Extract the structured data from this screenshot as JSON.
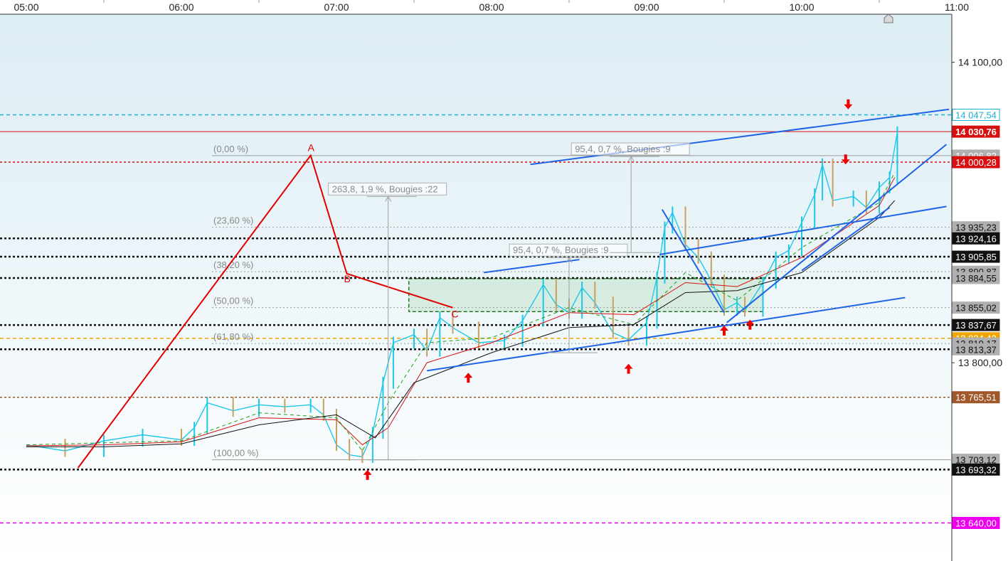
{
  "chart_data": {
    "type": "line",
    "x_axis": {
      "ticks": [
        "05:00",
        "06:00",
        "07:00",
        "08:00",
        "09:00",
        "10:00",
        "11:00"
      ]
    },
    "y_axis": {
      "ylim": [
        13602,
        14148
      ],
      "ticks": [
        "14 100,00",
        "13 800,00"
      ],
      "tick_values": [
        14100,
        13800
      ],
      "grid": false,
      "position": "right"
    },
    "price_tags": [
      {
        "label": "14 047,54",
        "value": 14047.54,
        "bg": "#ffffff",
        "fg": "#1ab0d8",
        "border": "#1ab0d8"
      },
      {
        "label": "14 030,76",
        "value": 14030.76,
        "bg": "#d61010",
        "fg": "#ffffff",
        "border": "#d61010",
        "bold": true
      },
      {
        "label": "14 006,82",
        "value": 14006.82,
        "bg": "#b0b0b0",
        "fg": "#ffffff",
        "border": "#b0b0b0"
      },
      {
        "label": "14 000,28",
        "value": 14000.28,
        "bg": "#d61010",
        "fg": "#ffffff",
        "border": "#d61010"
      },
      {
        "label": "13 935,23",
        "value": 13935.23,
        "bg": "#b0b0b0",
        "fg": "#111111",
        "border": "#b0b0b0"
      },
      {
        "label": "13 924,16",
        "value": 13924.16,
        "bg": "#111111",
        "fg": "#ffffff",
        "border": "#111111"
      },
      {
        "label": "13 905,85",
        "value": 13905.85,
        "bg": "#111111",
        "fg": "#ffffff",
        "border": "#111111"
      },
      {
        "label": "13 890,87",
        "value": 13890.87,
        "bg": "#b0b0b0",
        "fg": "#111111",
        "border": "#b0b0b0"
      },
      {
        "label": "13 884,55",
        "value": 13884.55,
        "bg": "#b0b0b0",
        "fg": "#111111",
        "border": "#b0b0b0"
      },
      {
        "label": "13 855,02",
        "value": 13855.02,
        "bg": "#b0b0b0",
        "fg": "#111111",
        "border": "#b0b0b0"
      },
      {
        "label": "13 837,67",
        "value": 13837.67,
        "bg": "#111111",
        "fg": "#ffffff",
        "border": "#111111"
      },
      {
        "label": "13 824,42",
        "value": 13824.42,
        "bg": "#f0a500",
        "fg": "#ffffff",
        "border": "#f0a500"
      },
      {
        "label": "13 819,17",
        "value": 13819.17,
        "bg": "#b0b0b0",
        "fg": "#111111",
        "border": "#b0b0b0"
      },
      {
        "label": "13 813,37",
        "value": 13813.37,
        "bg": "#b0b0b0",
        "fg": "#111111",
        "border": "#b0b0b0"
      },
      {
        "label": "13 765,51",
        "value": 13765.51,
        "bg": "#a0582a",
        "fg": "#ffffff",
        "border": "#a0582a"
      },
      {
        "label": "13 703,12",
        "value": 13703.12,
        "bg": "#b0b0b0",
        "fg": "#111111",
        "border": "#b0b0b0"
      },
      {
        "label": "13 693,32",
        "value": 13693.32,
        "bg": "#111111",
        "fg": "#ffffff",
        "border": "#111111"
      },
      {
        "label": "13 640,00",
        "value": 13640.0,
        "bg": "#ee00ee",
        "fg": "#ffffff",
        "border": "#ee00ee"
      }
    ],
    "horizontal_lines": [
      {
        "value": 14047.54,
        "color": "#1ab0d8",
        "style": "dashed"
      },
      {
        "value": 14030.76,
        "color": "#d61010",
        "style": "solid"
      },
      {
        "value": 14000.28,
        "color": "#d61010",
        "style": "dotted"
      },
      {
        "value": 13924.16,
        "color": "#111111",
        "style": "dotted"
      },
      {
        "value": 13905.85,
        "color": "#111111",
        "style": "dotted"
      },
      {
        "value": 13884.55,
        "color": "#111111",
        "style": "dotted"
      },
      {
        "value": 13837.67,
        "color": "#111111",
        "style": "dotted"
      },
      {
        "value": 13824.42,
        "color": "#f0a500",
        "style": "dashed"
      },
      {
        "value": 13813.37,
        "color": "#111111",
        "style": "dotted"
      },
      {
        "value": 13765.51,
        "color": "#a0582a",
        "style": "dotted"
      },
      {
        "value": 13693.32,
        "color": "#111111",
        "style": "dotted"
      },
      {
        "value": 13640.0,
        "color": "#ee00ee",
        "style": "dashed"
      }
    ],
    "fibonacci": {
      "levels": [
        {
          "label": "(0,00 %)",
          "value": 14006.82
        },
        {
          "label": "(23,60 %)",
          "value": 13935.23
        },
        {
          "label": "(38,20 %)",
          "value": 13890.87
        },
        {
          "label": "(50,00 %)",
          "value": 13855.02
        },
        {
          "label": "(61,80 %)",
          "value": 13819.17
        },
        {
          "label": "(100,00 %)",
          "value": 13703.12
        }
      ],
      "start_time": "07:00",
      "end_time": "11:00"
    },
    "abc_pattern": [
      {
        "label": "",
        "time": "05:20",
        "value": 13695
      },
      {
        "label": "A",
        "time": "06:50",
        "value": 14007
      },
      {
        "label": "B",
        "time": "07:04",
        "value": 13889
      },
      {
        "label": "C",
        "time": "07:45",
        "value": 13855
      }
    ],
    "measurements": [
      {
        "text": "263,8, 1,9 %, Bougies :22",
        "time": "07:20",
        "from": 13703,
        "to": 13966
      },
      {
        "text": "95,4, 0,7 %, Bougies :9",
        "time": "08:30",
        "from": 13810,
        "to": 13905
      },
      {
        "text": "95,4, 0,7 %, Bougies :9",
        "time": "08:54",
        "from": 13910,
        "to": 14006
      }
    ],
    "zone": {
      "time_from": "07:28",
      "time_to": "09:45",
      "from": 13851,
      "to": 13884,
      "color": "#2e9e2e"
    },
    "trend_lines": [
      {
        "points": [
          [
            "07:35",
            13792
          ],
          [
            "08:55",
            13823
          ]
        ],
        "color": "#1e64e6"
      },
      {
        "points": [
          [
            "08:55",
            13823
          ],
          [
            "10:40",
            13865
          ]
        ],
        "color": "#1e64e6"
      },
      {
        "points": [
          [
            "07:57",
            13890
          ],
          [
            "08:34",
            13903
          ]
        ],
        "color": "#1e64e6"
      },
      {
        "points": [
          [
            "08:15",
            13998
          ],
          [
            "10:57",
            14053
          ]
        ],
        "color": "#1e64e6"
      },
      {
        "points": [
          [
            "09:05",
            13908
          ],
          [
            "10:56",
            13956
          ]
        ],
        "color": "#1e64e6"
      },
      {
        "points": [
          [
            "09:31",
            13840
          ],
          [
            "10:56",
            14018
          ]
        ],
        "color": "#1e64e6"
      },
      {
        "points": [
          [
            "09:06",
            13953
          ],
          [
            "09:30",
            13850
          ]
        ],
        "color": "#1e64e6"
      },
      {
        "points": [
          [
            "10:00",
            13892
          ],
          [
            "10:34",
            13955
          ]
        ],
        "color": "#1e64e6"
      }
    ],
    "arrows": [
      {
        "dir": "up",
        "time": "07:12",
        "value": 13688
      },
      {
        "dir": "up",
        "time": "07:51",
        "value": 13785
      },
      {
        "dir": "up",
        "time": "08:53",
        "value": 13794
      },
      {
        "dir": "up",
        "time": "09:30",
        "value": 13832
      },
      {
        "dir": "up",
        "time": "09:40",
        "value": 13838
      },
      {
        "dir": "down",
        "time": "10:17",
        "value": 14003
      },
      {
        "dir": "down",
        "time": "10:18",
        "value": 14058
      }
    ],
    "price_path": [
      [
        "05:00",
        13718
      ],
      [
        "05:15",
        13712
      ],
      [
        "05:30",
        13722
      ],
      [
        "05:45",
        13728
      ],
      [
        "06:00",
        13723
      ],
      [
        "06:05",
        13735
      ],
      [
        "06:10",
        13760
      ],
      [
        "06:20",
        13752
      ],
      [
        "06:30",
        13758
      ],
      [
        "06:40",
        13756
      ],
      [
        "06:50",
        13758
      ],
      [
        "06:55",
        13748
      ],
      [
        "07:00",
        13718
      ],
      [
        "07:05",
        13708
      ],
      [
        "07:10",
        13706
      ],
      [
        "07:14",
        13730
      ],
      [
        "07:18",
        13780
      ],
      [
        "07:22",
        13820
      ],
      [
        "07:30",
        13828
      ],
      [
        "07:35",
        13812
      ],
      [
        "07:40",
        13845
      ],
      [
        "07:45",
        13835
      ],
      [
        "07:55",
        13820
      ],
      [
        "08:05",
        13822
      ],
      [
        "08:12",
        13842
      ],
      [
        "08:20",
        13878
      ],
      [
        "08:25",
        13858
      ],
      [
        "08:30",
        13850
      ],
      [
        "08:35",
        13875
      ],
      [
        "08:40",
        13860
      ],
      [
        "08:47",
        13830
      ],
      [
        "08:53",
        13823
      ],
      [
        "09:00",
        13840
      ],
      [
        "09:04",
        13885
      ],
      [
        "09:07",
        13935
      ],
      [
        "09:10",
        13950
      ],
      [
        "09:15",
        13918
      ],
      [
        "09:20",
        13905
      ],
      [
        "09:25",
        13882
      ],
      [
        "09:30",
        13853
      ],
      [
        "09:35",
        13860
      ],
      [
        "09:38",
        13852
      ],
      [
        "09:45",
        13880
      ],
      [
        "09:50",
        13905
      ],
      [
        "09:55",
        13912
      ],
      [
        "10:00",
        13940
      ],
      [
        "10:05",
        13968
      ],
      [
        "10:08",
        13998
      ],
      [
        "10:12",
        13962
      ],
      [
        "10:20",
        13966
      ],
      [
        "10:25",
        13955
      ],
      [
        "10:30",
        13975
      ],
      [
        "10:34",
        13985
      ],
      [
        "10:37",
        14030
      ]
    ],
    "moving_averages": [
      {
        "color": "#d61010",
        "points": [
          [
            "05:00",
            13717
          ],
          [
            "05:30",
            13718
          ],
          [
            "06:00",
            13721
          ],
          [
            "06:30",
            13745
          ],
          [
            "07:00",
            13743
          ],
          [
            "07:10",
            13718
          ],
          [
            "07:20",
            13735
          ],
          [
            "07:35",
            13800
          ],
          [
            "08:00",
            13820
          ],
          [
            "08:30",
            13850
          ],
          [
            "08:55",
            13848
          ],
          [
            "09:15",
            13880
          ],
          [
            "09:35",
            13876
          ],
          [
            "10:00",
            13905
          ],
          [
            "10:30",
            13957
          ],
          [
            "10:36",
            13985
          ]
        ]
      },
      {
        "color": "#16a316",
        "style": "dashed",
        "points": [
          [
            "05:00",
            13718
          ],
          [
            "05:30",
            13720
          ],
          [
            "06:00",
            13722
          ],
          [
            "06:30",
            13750
          ],
          [
            "07:00",
            13745
          ],
          [
            "07:10",
            13712
          ],
          [
            "07:20",
            13760
          ],
          [
            "07:35",
            13820
          ],
          [
            "08:00",
            13825
          ],
          [
            "08:30",
            13855
          ],
          [
            "08:55",
            13838
          ],
          [
            "09:15",
            13890
          ],
          [
            "09:35",
            13862
          ],
          [
            "10:00",
            13915
          ],
          [
            "10:30",
            13960
          ],
          [
            "10:36",
            13990
          ]
        ]
      },
      {
        "color": "#111111",
        "points": [
          [
            "05:00",
            13716
          ],
          [
            "05:30",
            13716
          ],
          [
            "06:00",
            13719
          ],
          [
            "06:30",
            13738
          ],
          [
            "07:00",
            13748
          ],
          [
            "07:15",
            13725
          ],
          [
            "07:30",
            13780
          ],
          [
            "08:00",
            13810
          ],
          [
            "08:30",
            13835
          ],
          [
            "08:55",
            13838
          ],
          [
            "09:15",
            13870
          ],
          [
            "09:35",
            13872
          ],
          [
            "10:00",
            13890
          ],
          [
            "10:30",
            13945
          ],
          [
            "10:36",
            13962
          ]
        ]
      }
    ]
  }
}
